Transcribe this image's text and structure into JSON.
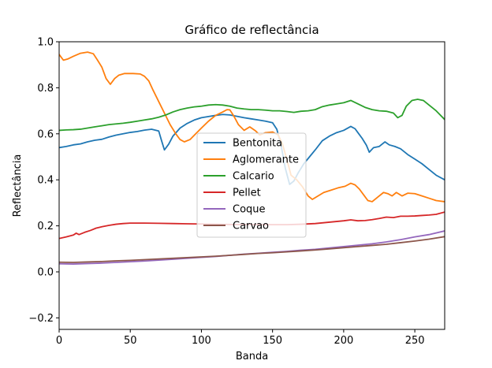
{
  "chart_data": {
    "type": "line",
    "title": "Gráfico de reflectância",
    "xlabel": "Banda",
    "ylabel": "Reflectância",
    "xlim": [
      0,
      271
    ],
    "ylim": [
      -0.25,
      1.0
    ],
    "xticks": [
      0,
      50,
      100,
      150,
      200,
      250
    ],
    "yticks": [
      -0.2,
      0.0,
      0.2,
      0.4,
      0.6,
      0.8,
      1.0
    ],
    "grid": false,
    "legend_position": "center",
    "series": [
      {
        "name": "Bentonita",
        "color": "#1f77b4",
        "points": [
          [
            0,
            0.54
          ],
          [
            5,
            0.545
          ],
          [
            10,
            0.552
          ],
          [
            15,
            0.556
          ],
          [
            20,
            0.565
          ],
          [
            25,
            0.572
          ],
          [
            30,
            0.576
          ],
          [
            35,
            0.586
          ],
          [
            40,
            0.594
          ],
          [
            45,
            0.6
          ],
          [
            50,
            0.606
          ],
          [
            55,
            0.61
          ],
          [
            60,
            0.616
          ],
          [
            65,
            0.62
          ],
          [
            70,
            0.612
          ],
          [
            72,
            0.57
          ],
          [
            74,
            0.53
          ],
          [
            77,
            0.555
          ],
          [
            80,
            0.59
          ],
          [
            85,
            0.625
          ],
          [
            90,
            0.645
          ],
          [
            95,
            0.66
          ],
          [
            100,
            0.67
          ],
          [
            105,
            0.675
          ],
          [
            110,
            0.68
          ],
          [
            115,
            0.684
          ],
          [
            120,
            0.682
          ],
          [
            125,
            0.676
          ],
          [
            130,
            0.67
          ],
          [
            135,
            0.665
          ],
          [
            140,
            0.66
          ],
          [
            145,
            0.655
          ],
          [
            150,
            0.648
          ],
          [
            153,
            0.62
          ],
          [
            156,
            0.55
          ],
          [
            159,
            0.45
          ],
          [
            162,
            0.38
          ],
          [
            165,
            0.395
          ],
          [
            168,
            0.43
          ],
          [
            172,
            0.47
          ],
          [
            176,
            0.5
          ],
          [
            180,
            0.53
          ],
          [
            185,
            0.57
          ],
          [
            190,
            0.59
          ],
          [
            195,
            0.605
          ],
          [
            200,
            0.615
          ],
          [
            205,
            0.632
          ],
          [
            208,
            0.622
          ],
          [
            210,
            0.605
          ],
          [
            213,
            0.58
          ],
          [
            216,
            0.55
          ],
          [
            218,
            0.52
          ],
          [
            221,
            0.54
          ],
          [
            225,
            0.545
          ],
          [
            229,
            0.565
          ],
          [
            232,
            0.552
          ],
          [
            236,
            0.545
          ],
          [
            240,
            0.535
          ],
          [
            245,
            0.51
          ],
          [
            250,
            0.49
          ],
          [
            255,
            0.47
          ],
          [
            260,
            0.445
          ],
          [
            265,
            0.42
          ],
          [
            271,
            0.4
          ]
        ]
      },
      {
        "name": "Aglomerante",
        "color": "#ff7f0e",
        "points": [
          [
            0,
            0.945
          ],
          [
            3,
            0.92
          ],
          [
            6,
            0.925
          ],
          [
            10,
            0.937
          ],
          [
            15,
            0.95
          ],
          [
            20,
            0.955
          ],
          [
            24,
            0.948
          ],
          [
            27,
            0.92
          ],
          [
            30,
            0.89
          ],
          [
            33,
            0.84
          ],
          [
            36,
            0.815
          ],
          [
            39,
            0.84
          ],
          [
            42,
            0.855
          ],
          [
            46,
            0.862
          ],
          [
            52,
            0.862
          ],
          [
            57,
            0.86
          ],
          [
            60,
            0.85
          ],
          [
            63,
            0.83
          ],
          [
            66,
            0.79
          ],
          [
            70,
            0.74
          ],
          [
            74,
            0.69
          ],
          [
            78,
            0.64
          ],
          [
            82,
            0.6
          ],
          [
            85,
            0.575
          ],
          [
            88,
            0.565
          ],
          [
            92,
            0.575
          ],
          [
            96,
            0.6
          ],
          [
            100,
            0.625
          ],
          [
            105,
            0.655
          ],
          [
            110,
            0.68
          ],
          [
            115,
            0.695
          ],
          [
            118,
            0.705
          ],
          [
            120,
            0.704
          ],
          [
            123,
            0.675
          ],
          [
            126,
            0.64
          ],
          [
            130,
            0.615
          ],
          [
            134,
            0.63
          ],
          [
            138,
            0.613
          ],
          [
            141,
            0.595
          ],
          [
            145,
            0.605
          ],
          [
            150,
            0.608
          ],
          [
            154,
            0.595
          ],
          [
            157,
            0.555
          ],
          [
            160,
            0.49
          ],
          [
            163,
            0.42
          ],
          [
            167,
            0.4
          ],
          [
            171,
            0.37
          ],
          [
            175,
            0.33
          ],
          [
            178,
            0.315
          ],
          [
            182,
            0.33
          ],
          [
            186,
            0.345
          ],
          [
            191,
            0.355
          ],
          [
            196,
            0.365
          ],
          [
            201,
            0.372
          ],
          [
            205,
            0.385
          ],
          [
            208,
            0.378
          ],
          [
            211,
            0.36
          ],
          [
            214,
            0.335
          ],
          [
            217,
            0.31
          ],
          [
            220,
            0.305
          ],
          [
            224,
            0.325
          ],
          [
            228,
            0.345
          ],
          [
            231,
            0.34
          ],
          [
            234,
            0.33
          ],
          [
            237,
            0.345
          ],
          [
            241,
            0.33
          ],
          [
            245,
            0.342
          ],
          [
            250,
            0.34
          ],
          [
            255,
            0.33
          ],
          [
            260,
            0.32
          ],
          [
            265,
            0.31
          ],
          [
            271,
            0.305
          ]
        ]
      },
      {
        "name": "Calcario",
        "color": "#2ca02c",
        "points": [
          [
            0,
            0.615
          ],
          [
            5,
            0.617
          ],
          [
            10,
            0.618
          ],
          [
            15,
            0.62
          ],
          [
            20,
            0.625
          ],
          [
            25,
            0.63
          ],
          [
            30,
            0.635
          ],
          [
            35,
            0.64
          ],
          [
            40,
            0.643
          ],
          [
            45,
            0.646
          ],
          [
            50,
            0.65
          ],
          [
            55,
            0.655
          ],
          [
            60,
            0.66
          ],
          [
            65,
            0.665
          ],
          [
            70,
            0.672
          ],
          [
            75,
            0.682
          ],
          [
            80,
            0.695
          ],
          [
            85,
            0.705
          ],
          [
            90,
            0.712
          ],
          [
            95,
            0.717
          ],
          [
            100,
            0.72
          ],
          [
            105,
            0.725
          ],
          [
            110,
            0.727
          ],
          [
            115,
            0.725
          ],
          [
            120,
            0.72
          ],
          [
            125,
            0.712
          ],
          [
            130,
            0.708
          ],
          [
            135,
            0.705
          ],
          [
            140,
            0.705
          ],
          [
            145,
            0.703
          ],
          [
            150,
            0.7
          ],
          [
            155,
            0.7
          ],
          [
            160,
            0.697
          ],
          [
            165,
            0.693
          ],
          [
            170,
            0.698
          ],
          [
            175,
            0.7
          ],
          [
            180,
            0.705
          ],
          [
            185,
            0.718
          ],
          [
            190,
            0.725
          ],
          [
            195,
            0.73
          ],
          [
            200,
            0.735
          ],
          [
            205,
            0.745
          ],
          [
            210,
            0.73
          ],
          [
            215,
            0.715
          ],
          [
            220,
            0.705
          ],
          [
            225,
            0.7
          ],
          [
            230,
            0.698
          ],
          [
            235,
            0.69
          ],
          [
            238,
            0.67
          ],
          [
            241,
            0.68
          ],
          [
            244,
            0.72
          ],
          [
            248,
            0.745
          ],
          [
            252,
            0.75
          ],
          [
            256,
            0.745
          ],
          [
            260,
            0.725
          ],
          [
            265,
            0.7
          ],
          [
            271,
            0.662
          ]
        ]
      },
      {
        "name": "Pellet",
        "color": "#d62728",
        "points": [
          [
            0,
            0.145
          ],
          [
            5,
            0.152
          ],
          [
            10,
            0.16
          ],
          [
            12,
            0.168
          ],
          [
            14,
            0.162
          ],
          [
            18,
            0.172
          ],
          [
            22,
            0.18
          ],
          [
            26,
            0.19
          ],
          [
            30,
            0.196
          ],
          [
            35,
            0.202
          ],
          [
            40,
            0.207
          ],
          [
            45,
            0.21
          ],
          [
            50,
            0.212
          ],
          [
            60,
            0.212
          ],
          [
            70,
            0.211
          ],
          [
            80,
            0.21
          ],
          [
            90,
            0.209
          ],
          [
            100,
            0.208
          ],
          [
            110,
            0.207
          ],
          [
            120,
            0.206
          ],
          [
            130,
            0.206
          ],
          [
            140,
            0.206
          ],
          [
            150,
            0.205
          ],
          [
            160,
            0.205
          ],
          [
            170,
            0.207
          ],
          [
            180,
            0.21
          ],
          [
            190,
            0.216
          ],
          [
            200,
            0.222
          ],
          [
            205,
            0.226
          ],
          [
            210,
            0.222
          ],
          [
            215,
            0.223
          ],
          [
            220,
            0.227
          ],
          [
            225,
            0.232
          ],
          [
            230,
            0.238
          ],
          [
            235,
            0.236
          ],
          [
            240,
            0.242
          ],
          [
            245,
            0.242
          ],
          [
            250,
            0.243
          ],
          [
            255,
            0.245
          ],
          [
            260,
            0.247
          ],
          [
            265,
            0.25
          ],
          [
            271,
            0.26
          ]
        ]
      },
      {
        "name": "Coque",
        "color": "#9467bd",
        "points": [
          [
            0,
            0.035
          ],
          [
            10,
            0.034
          ],
          [
            20,
            0.036
          ],
          [
            30,
            0.038
          ],
          [
            40,
            0.041
          ],
          [
            50,
            0.044
          ],
          [
            60,
            0.047
          ],
          [
            70,
            0.051
          ],
          [
            80,
            0.055
          ],
          [
            90,
            0.059
          ],
          [
            100,
            0.063
          ],
          [
            110,
            0.067
          ],
          [
            120,
            0.072
          ],
          [
            130,
            0.077
          ],
          [
            140,
            0.081
          ],
          [
            150,
            0.085
          ],
          [
            160,
            0.089
          ],
          [
            170,
            0.094
          ],
          [
            180,
            0.098
          ],
          [
            190,
            0.104
          ],
          [
            200,
            0.11
          ],
          [
            210,
            0.116
          ],
          [
            220,
            0.122
          ],
          [
            230,
            0.13
          ],
          [
            240,
            0.14
          ],
          [
            250,
            0.152
          ],
          [
            260,
            0.162
          ],
          [
            271,
            0.178
          ]
        ]
      },
      {
        "name": "Carvao",
        "color": "#8c564b",
        "points": [
          [
            0,
            0.042
          ],
          [
            10,
            0.041
          ],
          [
            20,
            0.043
          ],
          [
            30,
            0.045
          ],
          [
            40,
            0.048
          ],
          [
            50,
            0.05
          ],
          [
            60,
            0.053
          ],
          [
            70,
            0.056
          ],
          [
            80,
            0.059
          ],
          [
            90,
            0.062
          ],
          [
            100,
            0.065
          ],
          [
            110,
            0.068
          ],
          [
            120,
            0.072
          ],
          [
            130,
            0.076
          ],
          [
            140,
            0.08
          ],
          [
            150,
            0.083
          ],
          [
            160,
            0.087
          ],
          [
            170,
            0.091
          ],
          [
            180,
            0.095
          ],
          [
            190,
            0.1
          ],
          [
            200,
            0.105
          ],
          [
            210,
            0.11
          ],
          [
            220,
            0.115
          ],
          [
            230,
            0.12
          ],
          [
            240,
            0.127
          ],
          [
            250,
            0.134
          ],
          [
            260,
            0.142
          ],
          [
            271,
            0.153
          ]
        ]
      }
    ]
  }
}
